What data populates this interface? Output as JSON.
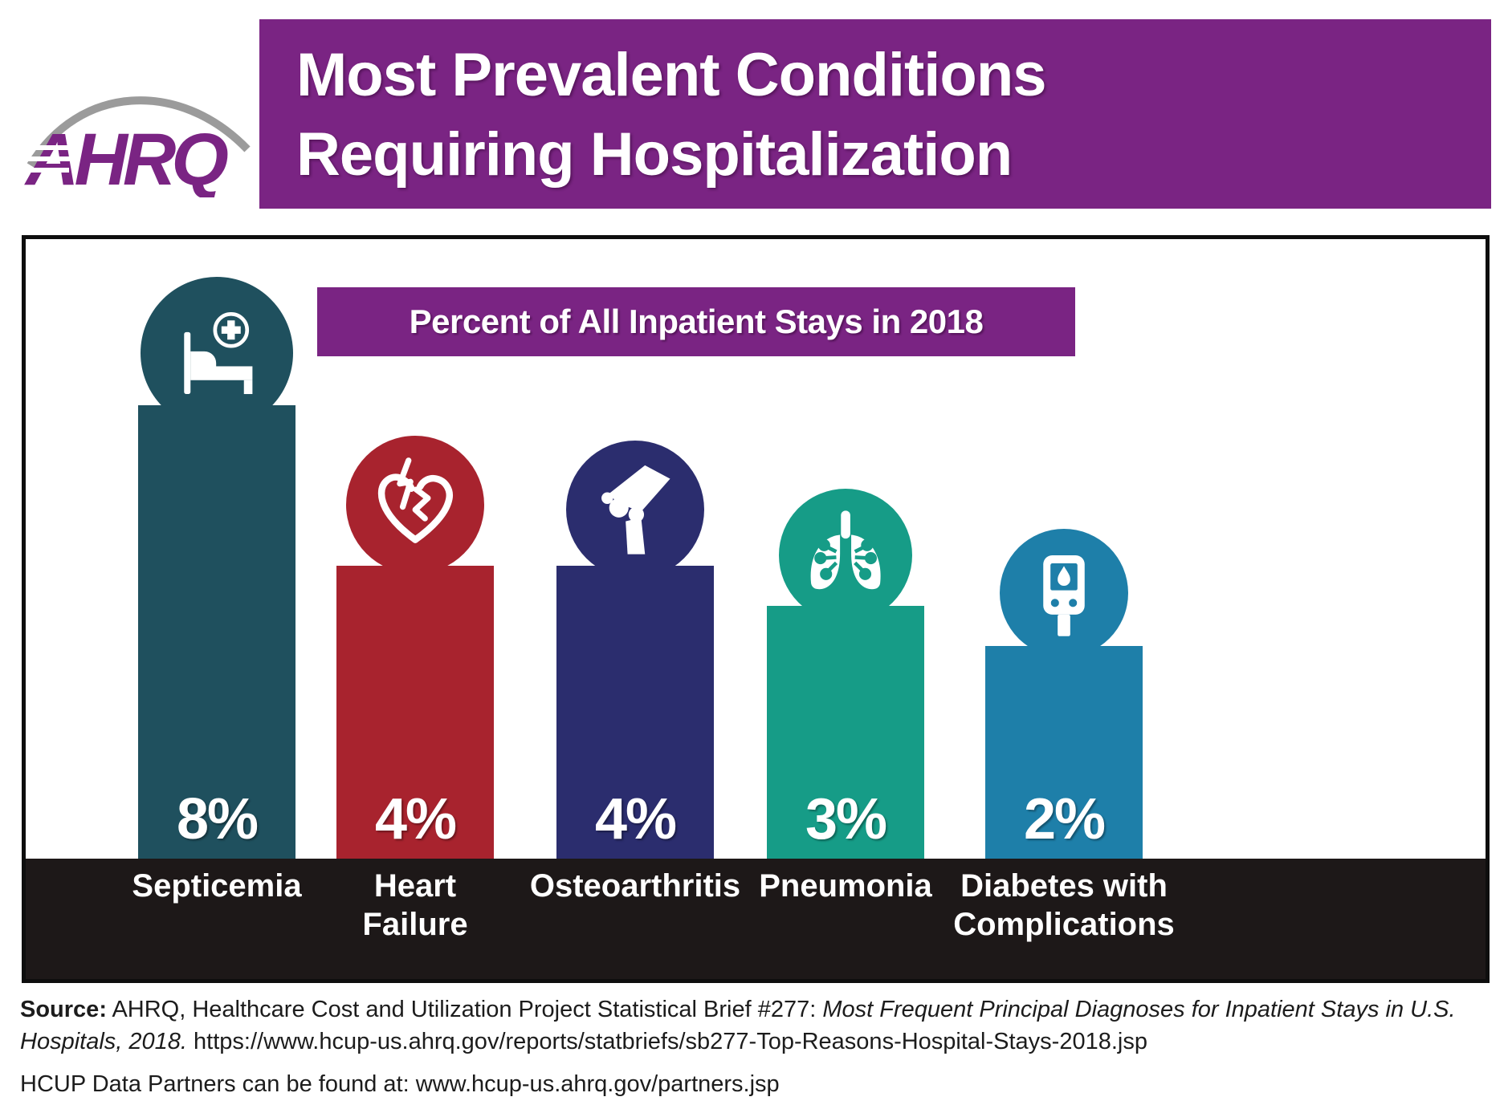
{
  "logo": {
    "text": "AHRQ"
  },
  "title": {
    "text": "Most Prevalent Conditions Requiring Hospitalization",
    "lines": [
      "Most Prevalent Conditions",
      "Requiring Hospitalization"
    ]
  },
  "chart_data": {
    "type": "bar",
    "title": "Percent of All Inpatient Stays in 2018",
    "categories": [
      "Septicemia",
      "Heart Failure",
      "Osteoarthritis",
      "Pneumonia",
      "Diabetes with Complications"
    ],
    "values": [
      8,
      4,
      4,
      3,
      2
    ],
    "value_labels": [
      "8%",
      "4%",
      "4%",
      "3%",
      "2%"
    ],
    "label_lines": [
      [
        "Septicemia"
      ],
      [
        "Heart",
        "Failure"
      ],
      [
        "Osteoarthritis"
      ],
      [
        "Pneumonia"
      ],
      [
        "Diabetes with",
        "Complications"
      ]
    ],
    "bar_colors": [
      "#1F505E",
      "#A8232E",
      "#2B2D6E",
      "#169C87",
      "#1E7FA9"
    ],
    "icons": [
      "hospital-bed-icon",
      "broken-heart-icon",
      "knee-joint-icon",
      "lungs-icon",
      "glucose-meter-icon"
    ],
    "xlabel": "",
    "ylabel": "percent of all inpatient stays",
    "ylim": [
      0,
      8
    ],
    "grid": false,
    "legend": false
  },
  "colors": {
    "accent_purple": "#7A2483",
    "band_black": "#1D1818",
    "arc_gray": "#9B9B9B"
  },
  "footer": {
    "source_label": "Source:",
    "text_normal_1": " AHRQ, Healthcare Cost and Utilization Project Statistical Brief #277: ",
    "text_italic": "Most Frequent Principal Diagnoses for Inpatient Stays in U.S. Hospitals, 2018.",
    "text_url": " https://www.hcup-us.ahrq.gov/reports/statbriefs/sb277-Top-Reasons-Hospital-Stays-2018.jsp",
    "partners_line": "HCUP Data Partners can be found at: www.hcup-us.ahrq.gov/partners.jsp"
  }
}
